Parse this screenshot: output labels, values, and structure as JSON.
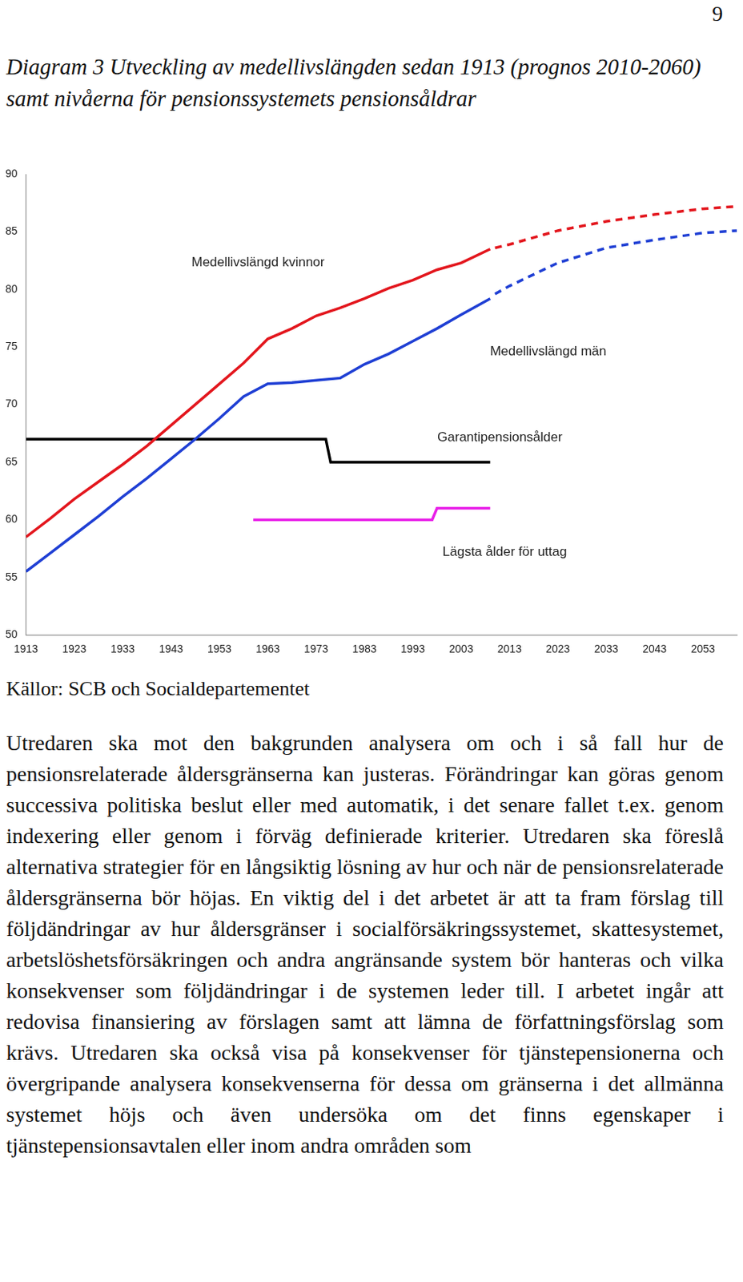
{
  "page_number": "9",
  "title": "Diagram 3 Utveckling av medellivslängden sedan 1913 (prognos 2010-2060) samt nivåerna för pensionssystemets pensionsåldrar",
  "chart_data": {
    "type": "line",
    "xlim": [
      1913,
      2060
    ],
    "xticks": [
      1913,
      1923,
      1933,
      1943,
      1953,
      1963,
      1973,
      1983,
      1993,
      2003,
      2013,
      2023,
      2033,
      2043,
      2053
    ],
    "ylim": [
      50,
      90
    ],
    "yticks": [
      50,
      55,
      60,
      65,
      70,
      75,
      80,
      85,
      90
    ],
    "grid": false,
    "legend": false,
    "series": [
      {
        "name": "Medellivslängd kvinnor",
        "color": "#e3161d",
        "line_style": "solid",
        "x": [
          1913,
          1918,
          1923,
          1928,
          1933,
          1938,
          1943,
          1948,
          1953,
          1958,
          1963,
          1968,
          1973,
          1978,
          1983,
          1988,
          1993,
          1998,
          2003,
          2009
        ],
        "values": [
          58.5,
          60.1,
          61.8,
          63.3,
          64.8,
          66.4,
          68.2,
          70.0,
          71.8,
          73.6,
          75.7,
          76.6,
          77.7,
          78.4,
          79.2,
          80.1,
          80.8,
          81.7,
          82.3,
          83.5
        ]
      },
      {
        "name": "Medellivslängd kvinnor",
        "color": "#e3161d",
        "line_style": "dashed",
        "x": [
          2010,
          2013,
          2023,
          2033,
          2043,
          2053,
          2060
        ],
        "values": [
          83.6,
          83.9,
          85.1,
          85.9,
          86.5,
          87.0,
          87.2
        ]
      },
      {
        "name": "Medellivslängd män",
        "color": "#1f3fd4",
        "line_style": "solid",
        "x": [
          1913,
          1918,
          1923,
          1928,
          1933,
          1938,
          1943,
          1948,
          1953,
          1958,
          1963,
          1968,
          1973,
          1978,
          1983,
          1988,
          1993,
          1998,
          2003,
          2009
        ],
        "values": [
          55.5,
          57.1,
          58.7,
          60.3,
          62.0,
          63.6,
          65.3,
          67.0,
          68.8,
          70.7,
          71.8,
          71.9,
          72.1,
          72.3,
          73.5,
          74.4,
          75.5,
          76.6,
          77.8,
          79.2
        ]
      },
      {
        "name": "Medellivslängd män",
        "color": "#1f3fd4",
        "line_style": "dashed",
        "x": [
          2010,
          2013,
          2023,
          2033,
          2043,
          2053,
          2060
        ],
        "values": [
          79.6,
          80.3,
          82.3,
          83.6,
          84.3,
          84.9,
          85.1
        ]
      },
      {
        "name": "Garantipensionsålder",
        "color": "#000000",
        "line_style": "solid",
        "x": [
          1913,
          1975,
          1976,
          2009
        ],
        "values": [
          67,
          67,
          65,
          65
        ]
      },
      {
        "name": "Lägsta ålder för uttag",
        "color": "#e81ee8",
        "line_style": "solid",
        "x": [
          1960,
          1997,
          1998,
          2009
        ],
        "values": [
          60,
          60,
          61,
          61
        ]
      }
    ],
    "annotations": [
      {
        "text": "Medellivslängd kvinnor",
        "x": 1961,
        "y": 82.3
      },
      {
        "text": "Medellivslängd män",
        "x": 2021,
        "y": 74.6
      },
      {
        "text": "Garantipensionsålder",
        "x": 2011,
        "y": 67.1
      },
      {
        "text": "Lägsta ålder för uttag",
        "x": 2012,
        "y": 57.2
      }
    ]
  },
  "source": "Källor: SCB och Socialdepartementet",
  "body": "Utredaren ska mot den bakgrunden analysera om och i så fall hur de pensionsrelaterade åldersgränserna kan justeras. Förändringar kan göras genom successiva politiska beslut eller med automatik, i det senare fallet t.ex. genom indexering eller genom i förväg definierade kriterier. Utredaren ska föreslå alternativa strategier för en långsiktig lösning av hur och när de pensionsrelaterade åldersgränserna bör höjas. En viktig del i det arbetet är att ta fram förslag till följdändringar av hur åldersgränser i socialförsäkringssystemet, skattesystemet, arbetslöshetsförsäkringen och andra angränsande system bör hanteras och vilka konsekvenser som följdändringar i de systemen leder till. I arbetet ingår att redovisa finansiering av förslagen samt att lämna de författningsförslag som krävs. Utredaren ska också visa på konsekvenser för tjänstepensionerna och övergripande analysera konsekvenserna för dessa om gränserna i det allmänna systemet höjs och även undersöka om det finns egenskaper i tjänstepensionsavtalen eller inom andra områden som"
}
